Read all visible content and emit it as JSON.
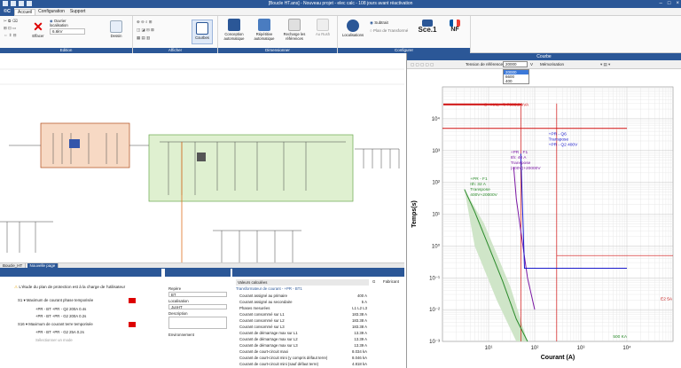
{
  "window": {
    "title": "[Boucle HT.ans] - Nouveau projet - elec calc - 108 jours avant réactivation"
  },
  "menu": {
    "logo": "©C",
    "items": [
      "Accueil",
      "Configuration",
      "Support"
    ]
  },
  "ribbon": {
    "erase_label": "Effacer",
    "localisation_label": "Ouvrier localisation",
    "voltage_select": "6.6kV",
    "dessin_label": "Dessin",
    "courbes_label": "Courbes",
    "conception_label": "Conception automatique",
    "repetitive_label": "Répétitive automatique",
    "recharge_label": "Recharge les références",
    "rush_label": "Au Rush",
    "localisation_btn": "Localisations",
    "transf1": "Subtrait",
    "transf2": "Plan de Transformé",
    "sce_label": "Sce.1",
    "nf_label": "NF",
    "groups": [
      "Edition",
      "Afficher",
      "Dimensionner",
      "Configurer"
    ]
  },
  "tabs": [
    "Boucle_HT",
    "Nouvelle page"
  ],
  "bottom_left": {
    "warning": "L'étude du plan de protection est à la charge de l'utilisateur",
    "rows": [
      {
        "id": "S1",
        "label": "Maximum de courant phase temporisée"
      },
      {
        "id": "",
        "label": "+PR - BT      +PR - Q2        200A       0.4s"
      },
      {
        "id": "",
        "label": "+PR - BT      +PR - G2        200A       0.2s"
      },
      {
        "id": "S16",
        "label": "Maximum de courant terre temporisée"
      },
      {
        "id": "",
        "label": "+PR - BT      +PR - G2          25A       0.2s"
      },
      {
        "id": "",
        "label": "Sélectionner un mode"
      }
    ]
  },
  "bottom_mid": {
    "fields": [
      {
        "label": "Repère",
        "value": "BT"
      },
      {
        "label": "Localisation",
        "value": "JunHT"
      },
      {
        "label": "Description",
        "value": ""
      },
      {
        "label": "Environnement",
        "value": ""
      }
    ]
  },
  "bottom_right": {
    "header": "Valeurs calculées",
    "section": "Transformateur de courant - +PR - BT1",
    "rows": [
      {
        "label": "Courant assigné au primaire",
        "value": "400 A"
      },
      {
        "label": "Courant assigné au secondaire",
        "value": "5 A"
      },
      {
        "label": "Phases mesurées",
        "value": "L1 L2 L3"
      },
      {
        "label": "Courant consommé sur L1",
        "value": "183.38 A"
      },
      {
        "label": "Courant consommé sur L2",
        "value": "183.38 A"
      },
      {
        "label": "Courant consommé sur L3",
        "value": "183.38 A"
      },
      {
        "label": "Courant de démarrage max sur L1",
        "value": "13.39 A"
      },
      {
        "label": "Courant de démarrage max sur L2",
        "value": "13.39 A"
      },
      {
        "label": "Courant de démarrage max sur L3",
        "value": "13.39 A"
      },
      {
        "label": "Courant de court-circuit maxi",
        "value": "8.034 kA"
      },
      {
        "label": "Courant de court-circuit mini (y compris défaut terre)",
        "value": "8.046 kA"
      },
      {
        "label": "Courant de court-circuit mini (sauf défaut terre)",
        "value": "4.818 kA"
      }
    ],
    "side_cols": [
      "G",
      "Fabricant"
    ]
  },
  "curve_panel": {
    "title": "Courbe",
    "ref_label": "Tension de référence",
    "ref_value": "20000",
    "unit": "V",
    "memo_label": "Mémorisation",
    "dropdown_options": [
      "20000",
      "6600",
      "400"
    ],
    "ylabel": "Temps(s)",
    "xlabel": "Courant (A)",
    "y_ticks": [
      "10⁴",
      "10³",
      "10²",
      "10¹",
      "10⁰",
      "10⁻¹",
      "10⁻²",
      "10⁻³"
    ],
    "x_ticks": [
      "10¹",
      "10²",
      "10³",
      "10⁴"
    ],
    "annotations": [
      {
        "text": "S - HAL - T: 7003,3 kVA",
        "color": "#d01010"
      },
      {
        "text": "+PR - Q6\nTranspose\n+PR - Q2 400V",
        "color": "#1a1acc"
      },
      {
        "text": "+PR - F1\nIth: 40 A\nTranspose\n(400V)+20000V",
        "color": "#7a16a3"
      },
      {
        "text": "+PR - F1\nIth: 32 A\nTranspose\n400V+20000V",
        "color": "#2a8a2a"
      },
      {
        "text": "E2 5A",
        "color": "#c01010"
      },
      {
        "text": "500 KA",
        "color": "#2a8a2a"
      }
    ]
  },
  "chart_data": {
    "type": "line",
    "title": "",
    "xlabel": "Courant (A)",
    "ylabel": "Temps(s)",
    "x_scale": "log",
    "y_scale": "log",
    "xlim": [
      1,
      100000
    ],
    "ylim": [
      0.001,
      100000
    ],
    "grid": true,
    "series": [
      {
        "name": "+PR - F1 Ith: 32 A",
        "color": "#2a8a2a",
        "x": [
          3,
          5,
          10,
          20,
          40,
          70
        ],
        "y": [
          60,
          12,
          1,
          0.08,
          0.005,
          0.001
        ]
      },
      {
        "name": "+PR - F1 Ith: 40 A",
        "color": "#7a16a3",
        "x": [
          35,
          40,
          50,
          70,
          100
        ],
        "y": [
          300,
          30,
          3,
          0.1,
          0.01
        ]
      },
      {
        "name": "+PR - Q6",
        "color": "#1a1acc",
        "x": [
          50,
          60,
          200,
          10000
        ],
        "y": [
          800,
          0.2,
          0.2,
          0.2
        ]
      },
      {
        "name": "S - HAL - T: 7003,3 kVA",
        "color": "#d01010",
        "x": [
          1,
          10000
        ],
        "y": [
          5000,
          5000
        ]
      }
    ],
    "colors": {
      "green": "#2a8a2a",
      "purple": "#7a16a3",
      "blue": "#1a1acc",
      "red": "#d01010"
    }
  },
  "colors": {
    "accent": "#2b5797",
    "zone_orange": "#f7d9c4",
    "zone_green": "#dff0d0"
  }
}
